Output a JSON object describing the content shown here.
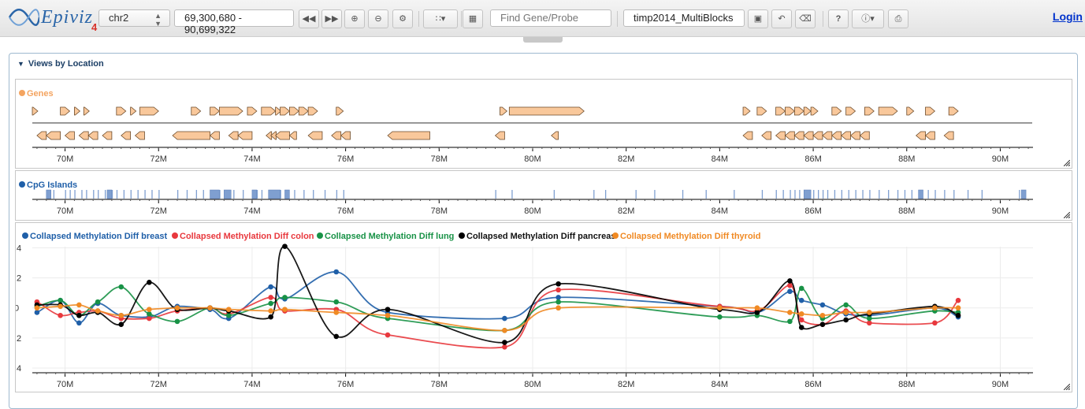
{
  "app": {
    "logo_text": "Epiviz",
    "logo_version": "4"
  },
  "toolbar": {
    "chromosome": "chr2",
    "location": "69,300,680 - 90,699,322",
    "search_placeholder": "Find Gene/Probe",
    "workspace": "timp2014_MultiBlocks",
    "help_label": "?",
    "login_label": "Login"
  },
  "section": {
    "title": "Views by Location"
  },
  "genes_track": {
    "title": "Genes",
    "color": "#f4a460",
    "gene_fill": "#f9c89b",
    "upper_genes": [
      [
        69.3,
        69.4
      ],
      [
        69.9,
        70.1
      ],
      [
        70.2,
        70.3
      ],
      [
        70.4,
        70.5
      ],
      [
        71.1,
        71.3
      ],
      [
        71.4,
        71.5
      ],
      [
        71.6,
        72.0
      ],
      [
        72.7,
        72.9
      ],
      [
        73.1,
        73.3
      ],
      [
        73.3,
        73.8
      ],
      [
        73.9,
        74.1
      ],
      [
        74.2,
        74.5
      ],
      [
        74.5,
        74.6
      ],
      [
        74.6,
        74.8
      ],
      [
        74.8,
        75.0
      ],
      [
        75.0,
        75.2
      ],
      [
        75.2,
        75.4
      ],
      [
        75.8,
        75.95
      ],
      [
        79.3,
        79.45
      ],
      [
        79.5,
        81.1
      ],
      [
        84.5,
        84.65
      ],
      [
        84.8,
        85.0
      ],
      [
        85.2,
        85.4
      ],
      [
        85.4,
        85.6
      ],
      [
        85.6,
        85.8
      ],
      [
        85.8,
        85.95
      ],
      [
        85.95,
        86.1
      ],
      [
        86.4,
        86.6
      ],
      [
        86.7,
        86.9
      ],
      [
        87.1,
        87.3
      ],
      [
        87.4,
        87.8
      ],
      [
        88.0,
        88.15
      ],
      [
        88.4,
        88.6
      ],
      [
        88.9,
        89.1
      ]
    ],
    "lower_genes": [
      [
        69.4,
        69.6
      ],
      [
        69.6,
        69.9
      ],
      [
        70.0,
        70.2
      ],
      [
        70.3,
        70.5
      ],
      [
        70.5,
        70.7
      ],
      [
        70.8,
        71.0
      ],
      [
        71.2,
        71.4
      ],
      [
        71.5,
        71.7
      ],
      [
        72.3,
        73.1
      ],
      [
        73.1,
        73.3
      ],
      [
        73.5,
        73.7
      ],
      [
        73.7,
        74.0
      ],
      [
        74.3,
        74.4
      ],
      [
        74.4,
        74.5
      ],
      [
        74.5,
        74.8
      ],
      [
        74.8,
        74.95
      ],
      [
        75.2,
        75.5
      ],
      [
        75.7,
        75.9
      ],
      [
        75.9,
        76.1
      ],
      [
        76.9,
        77.8
      ],
      [
        79.2,
        79.4
      ],
      [
        80.4,
        80.55
      ],
      [
        84.5,
        84.7
      ],
      [
        84.9,
        85.1
      ],
      [
        85.2,
        85.4
      ],
      [
        85.4,
        85.6
      ],
      [
        85.6,
        85.8
      ],
      [
        85.8,
        86.0
      ],
      [
        86.0,
        86.2
      ],
      [
        86.2,
        86.4
      ],
      [
        86.4,
        86.6
      ],
      [
        86.6,
        86.8
      ],
      [
        86.8,
        87.0
      ],
      [
        87.0,
        87.2
      ],
      [
        88.2,
        88.4
      ],
      [
        88.4,
        88.6
      ],
      [
        88.8,
        89.0
      ]
    ]
  },
  "cpg_track": {
    "title": "CpG Islands",
    "color": "#1f5fa8",
    "fill": "#7f9fd0",
    "islands": [
      69.6,
      69.75,
      70.0,
      70.1,
      70.2,
      70.35,
      70.45,
      70.6,
      70.7,
      70.85,
      71.0,
      71.1,
      71.25,
      71.4,
      71.55,
      71.7,
      71.85,
      72.0,
      72.4,
      72.6,
      72.8,
      72.95,
      73.1,
      73.2,
      73.3,
      73.45,
      73.6,
      73.8,
      74.0,
      74.1,
      74.2,
      74.35,
      74.5,
      74.6,
      74.75,
      74.9,
      75.1,
      75.3,
      75.55,
      75.8,
      75.95,
      79.2,
      79.55,
      80.45,
      81.3,
      81.55,
      82.2,
      82.6,
      83.2,
      83.7,
      84.3,
      84.9,
      85.2,
      85.35,
      85.5,
      85.6,
      85.7,
      85.8,
      85.9,
      86.0,
      86.1,
      86.2,
      86.3,
      86.45,
      86.6,
      86.75,
      86.9,
      87.05,
      87.2,
      87.4,
      87.6,
      87.8,
      87.95,
      88.1,
      88.25,
      88.45,
      88.6,
      88.8,
      89.0,
      89.3,
      89.6,
      90.4
    ],
    "wide_islands": [
      [
        69.6,
        69.7
      ],
      [
        70.9,
        71.0
      ],
      [
        73.1,
        73.3
      ],
      [
        73.4,
        73.55
      ],
      [
        74.0,
        74.1
      ],
      [
        74.35,
        74.6
      ],
      [
        74.7,
        74.8
      ],
      [
        85.8,
        85.95
      ],
      [
        88.25,
        88.35
      ],
      [
        90.45,
        90.55
      ]
    ]
  },
  "methylation_track": {
    "series": [
      {
        "name": "Collapsed Methylation Diff breast",
        "color": "#1f5fa8",
        "points": [
          [
            69.4,
            -0.03
          ],
          [
            69.9,
            0.05
          ],
          [
            70.3,
            -0.1
          ],
          [
            70.7,
            0.03
          ],
          [
            71.2,
            -0.05
          ],
          [
            71.8,
            -0.06
          ],
          [
            72.4,
            0.01
          ],
          [
            73.1,
            -0.01
          ],
          [
            73.5,
            -0.07
          ],
          [
            74.4,
            0.14
          ],
          [
            74.7,
            0.06
          ],
          [
            75.8,
            0.24
          ],
          [
            76.9,
            -0.03
          ],
          [
            79.4,
            -0.07
          ],
          [
            80.55,
            0.07
          ],
          [
            84.0,
            0.01
          ],
          [
            84.8,
            -0.03
          ],
          [
            85.5,
            0.11
          ],
          [
            85.75,
            0.05
          ],
          [
            86.2,
            0.02
          ],
          [
            86.7,
            -0.04
          ],
          [
            87.2,
            -0.05
          ],
          [
            88.6,
            0.0
          ],
          [
            89.1,
            -0.06
          ]
        ]
      },
      {
        "name": "Collapsed Methylation Diff colon",
        "color": "#e8383d",
        "points": [
          [
            69.4,
            0.04
          ],
          [
            69.9,
            -0.05
          ],
          [
            70.3,
            -0.03
          ],
          [
            70.7,
            -0.02
          ],
          [
            71.2,
            -0.07
          ],
          [
            71.8,
            -0.07
          ],
          [
            72.4,
            -0.02
          ],
          [
            73.1,
            0.0
          ],
          [
            73.5,
            -0.04
          ],
          [
            74.4,
            0.07
          ],
          [
            74.7,
            -0.02
          ],
          [
            75.8,
            -0.01
          ],
          [
            76.9,
            -0.18
          ],
          [
            79.4,
            -0.26
          ],
          [
            80.55,
            0.12
          ],
          [
            84.0,
            0.01
          ],
          [
            84.8,
            -0.02
          ],
          [
            85.5,
            0.15
          ],
          [
            85.75,
            -0.08
          ],
          [
            86.2,
            -0.11
          ],
          [
            86.7,
            -0.02
          ],
          [
            87.2,
            -0.1
          ],
          [
            88.6,
            -0.1
          ],
          [
            89.1,
            0.05
          ]
        ]
      },
      {
        "name": "Collapsed Methylation Diff lung",
        "color": "#189246",
        "points": [
          [
            69.4,
            0.01
          ],
          [
            69.9,
            0.05
          ],
          [
            70.3,
            -0.05
          ],
          [
            70.7,
            0.04
          ],
          [
            71.2,
            0.14
          ],
          [
            71.8,
            -0.04
          ],
          [
            72.4,
            -0.09
          ],
          [
            73.1,
            0.0
          ],
          [
            73.5,
            -0.05
          ],
          [
            74.4,
            0.03
          ],
          [
            74.7,
            0.07
          ],
          [
            75.8,
            0.04
          ],
          [
            76.9,
            -0.07
          ],
          [
            79.4,
            -0.15
          ],
          [
            80.55,
            0.04
          ],
          [
            84.0,
            -0.06
          ],
          [
            84.8,
            -0.05
          ],
          [
            85.5,
            -0.09
          ],
          [
            85.75,
            0.13
          ],
          [
            86.2,
            -0.07
          ],
          [
            86.7,
            0.02
          ],
          [
            87.2,
            -0.07
          ],
          [
            88.6,
            -0.02
          ],
          [
            89.1,
            -0.03
          ]
        ]
      },
      {
        "name": "Collapsed Methylation Diff pancreas",
        "color": "#000000",
        "points": [
          [
            69.4,
            0.02
          ],
          [
            69.9,
            0.02
          ],
          [
            70.3,
            -0.05
          ],
          [
            70.7,
            -0.03
          ],
          [
            71.2,
            -0.11
          ],
          [
            71.8,
            0.17
          ],
          [
            72.4,
            -0.01
          ],
          [
            73.1,
            0.0
          ],
          [
            73.5,
            -0.02
          ],
          [
            74.4,
            -0.06
          ],
          [
            74.7,
            0.41
          ],
          [
            75.8,
            -0.19
          ],
          [
            76.9,
            -0.01
          ],
          [
            79.4,
            -0.23
          ],
          [
            80.55,
            0.16
          ],
          [
            84.0,
            -0.01
          ],
          [
            84.8,
            -0.03
          ],
          [
            85.5,
            0.18
          ],
          [
            85.75,
            -0.13
          ],
          [
            86.2,
            -0.11
          ],
          [
            86.7,
            -0.08
          ],
          [
            87.2,
            -0.04
          ],
          [
            88.6,
            0.01
          ],
          [
            89.1,
            -0.05
          ]
        ]
      },
      {
        "name": "Collapsed Methylation Diff thyroid",
        "color": "#f08a24",
        "points": [
          [
            69.4,
            0.0
          ],
          [
            69.9,
            0.01
          ],
          [
            70.3,
            0.02
          ],
          [
            70.7,
            -0.02
          ],
          [
            71.2,
            -0.05
          ],
          [
            71.8,
            -0.01
          ],
          [
            72.4,
            0.0
          ],
          [
            73.1,
            0.0
          ],
          [
            73.5,
            -0.01
          ],
          [
            74.4,
            -0.02
          ],
          [
            74.7,
            -0.01
          ],
          [
            75.8,
            -0.03
          ],
          [
            76.9,
            -0.05
          ],
          [
            79.4,
            -0.15
          ],
          [
            80.55,
            0.0
          ],
          [
            84.0,
            0.0
          ],
          [
            84.8,
            0.0
          ],
          [
            85.5,
            -0.03
          ],
          [
            85.75,
            -0.04
          ],
          [
            86.2,
            -0.05
          ],
          [
            86.7,
            -0.03
          ],
          [
            87.2,
            -0.03
          ],
          [
            88.6,
            0.0
          ],
          [
            89.1,
            0.0
          ]
        ]
      }
    ]
  },
  "axis": {
    "xlim": [
      69.3,
      90.7
    ],
    "tick_values": [
      70,
      72,
      74,
      76,
      78,
      80,
      82,
      84,
      86,
      88,
      90
    ],
    "tick_labels": [
      "70M",
      "72M",
      "74M",
      "76M",
      "78M",
      "80M",
      "82M",
      "84M",
      "86M",
      "88M",
      "90M"
    ]
  },
  "chart_data": {
    "type": "line",
    "xlabel": "",
    "ylabel": "",
    "xlim": [
      69.3,
      90.7
    ],
    "ylim": [
      -0.5,
      0.45
    ],
    "y_tick_labels": [
      ".4",
      ".2",
      "0",
      ".2",
      ".4"
    ],
    "legend": "top-left",
    "grid": true
  }
}
